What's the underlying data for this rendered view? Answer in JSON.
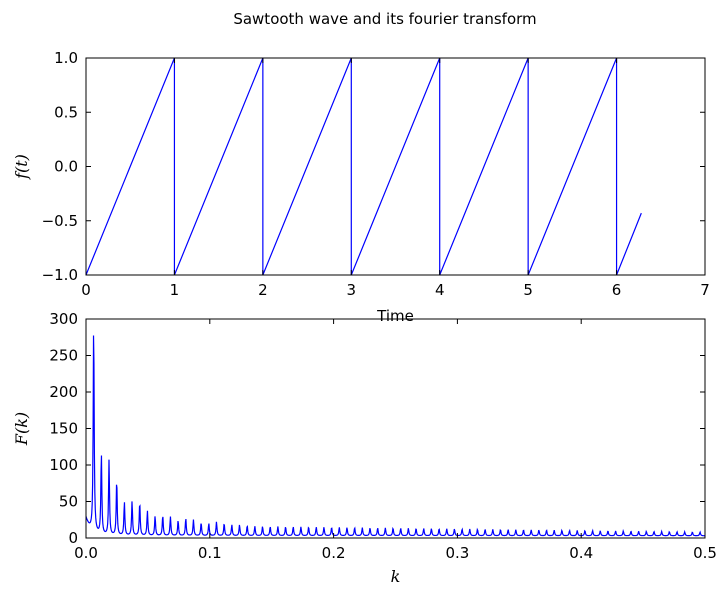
{
  "figure": {
    "title": "Sawtooth wave and its fourier transform"
  },
  "chart_data": [
    {
      "type": "line",
      "title": "",
      "xlabel": "Time",
      "ylabel": "f(t)",
      "xlim": [
        0,
        7
      ],
      "ylim": [
        -1.0,
        1.0
      ],
      "x_ticks": [
        0,
        1,
        2,
        3,
        4,
        5,
        6,
        7
      ],
      "x_tick_labels": [
        "0",
        "1",
        "2",
        "3",
        "4",
        "5",
        "6",
        "7"
      ],
      "y_ticks": [
        -1.0,
        -0.5,
        0.0,
        0.5,
        1.0
      ],
      "y_tick_labels": [
        "−1.0",
        "−0.5",
        "0.0",
        "0.5",
        "1.0"
      ],
      "grid": false,
      "color": "#0000ff",
      "series": [
        {
          "x": [
            0,
            1,
            1,
            2,
            2,
            3,
            3,
            4,
            4,
            5,
            5,
            6,
            6,
            6.28
          ],
          "y": [
            -1,
            1,
            -1,
            1,
            -1,
            1,
            -1,
            1,
            -1,
            1,
            -1,
            1,
            -1,
            -0.43
          ]
        }
      ]
    },
    {
      "type": "line",
      "title": "",
      "xlabel": "k",
      "ylabel": "F(k)",
      "xlim": [
        0,
        0.5
      ],
      "ylim": [
        0,
        300
      ],
      "x_ticks": [
        0.0,
        0.1,
        0.2,
        0.3,
        0.4,
        0.5
      ],
      "x_tick_labels": [
        "0.0",
        "0.1",
        "0.2",
        "0.3",
        "0.4",
        "0.5"
      ],
      "y_ticks": [
        0,
        50,
        100,
        150,
        200,
        250,
        300
      ],
      "y_tick_labels": [
        "0",
        "50",
        "100",
        "150",
        "200",
        "250",
        "300"
      ],
      "grid": false,
      "color": "#0000ff",
      "peak_spacing": 0.0062,
      "peaks": [
        {
          "k": 0.0062,
          "F": 290
        },
        {
          "k": 0.0124,
          "F": 112
        },
        {
          "k": 0.0186,
          "F": 103
        },
        {
          "k": 0.0248,
          "F": 77
        },
        {
          "k": 0.031,
          "F": 46
        },
        {
          "k": 0.0372,
          "F": 47
        },
        {
          "k": 0.0434,
          "F": 46
        },
        {
          "k": 0.0496,
          "F": 34
        },
        {
          "k": 0.0558,
          "F": 27
        },
        {
          "k": 0.062,
          "F": 28
        },
        {
          "k": 0.0682,
          "F": 26
        },
        {
          "k": 0.0744,
          "F": 21
        },
        {
          "k": 0.0806,
          "F": 24
        },
        {
          "k": 0.0868,
          "F": 22
        },
        {
          "k": 0.093,
          "F": 18
        },
        {
          "k": 0.0992,
          "F": 17
        },
        {
          "k": 0.1054,
          "F": 19
        },
        {
          "k": 0.1116,
          "F": 17
        },
        {
          "k": 0.1178,
          "F": 15
        },
        {
          "k": 0.124,
          "F": 15
        },
        {
          "k": 0.1302,
          "F": 14
        }
      ],
      "tail_peak_range": [
        13,
        5
      ],
      "baseline_near_zero": 3
    }
  ]
}
